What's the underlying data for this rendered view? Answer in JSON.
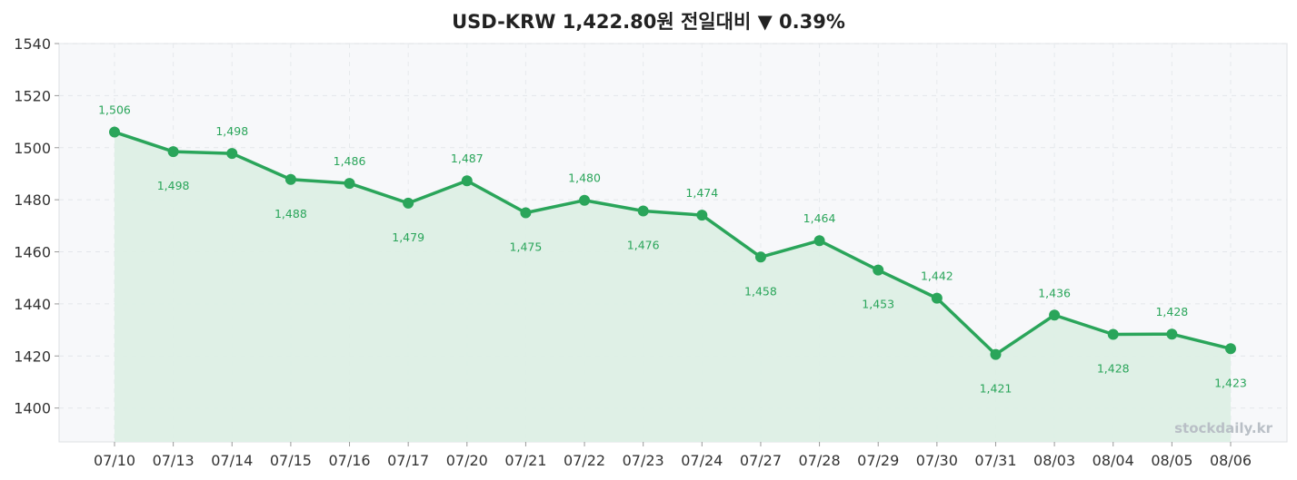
{
  "chart_data": {
    "type": "line",
    "title": "USD-KRW  1,422.80원  전일대비 ▼ 0.39%",
    "categories": [
      "07/10",
      "07/13",
      "07/14",
      "07/15",
      "07/16",
      "07/17",
      "07/20",
      "07/21",
      "07/22",
      "07/23",
      "07/24",
      "07/27",
      "07/28",
      "07/29",
      "07/30",
      "07/31",
      "08/03",
      "08/04",
      "08/05",
      "08/06"
    ],
    "series": [
      {
        "values": [
          1506,
          1498.5,
          1497.8,
          1487.8,
          1486.3,
          1478.7,
          1487.3,
          1475,
          1479.8,
          1475.7,
          1474.1,
          1458,
          1464.3,
          1453,
          1442.2,
          1420.6,
          1435.7,
          1428.3,
          1428.4,
          1422.8
        ]
      }
    ],
    "data_labels": [
      "1,506",
      "1,498",
      "1,498",
      "1,488",
      "1,486",
      "1,479",
      "1,487",
      "1,475",
      "1,480",
      "1,476",
      "1,474",
      "1,458",
      "1,464",
      "1,453",
      "1,442",
      "1,421",
      "1,436",
      "1,428",
      "1,428",
      "1,423"
    ],
    "xlabel": "",
    "ylabel": "",
    "ylim": [
      1387,
      1540
    ],
    "yticks": [
      1400,
      1420,
      1440,
      1460,
      1480,
      1500,
      1520,
      1540
    ],
    "grid": true,
    "line_color": "#2aa55a",
    "fill_color": "#ddefe5",
    "plot_bg": "#f7f8fa",
    "watermark": "stockdaily.kr"
  }
}
